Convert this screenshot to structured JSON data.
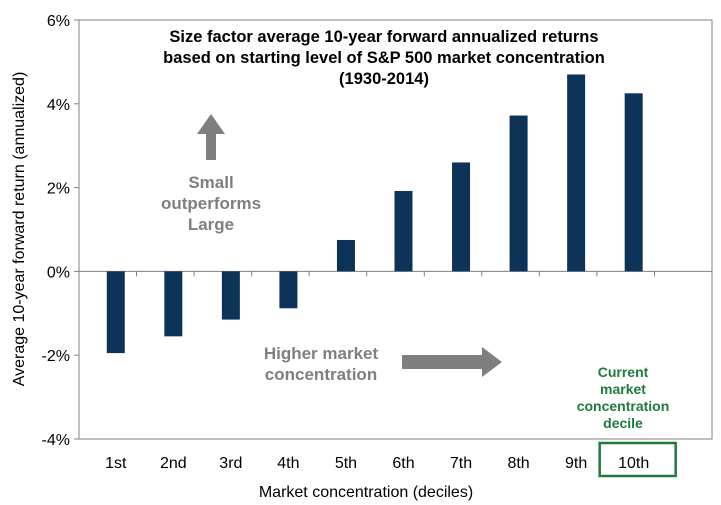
{
  "chart_data": {
    "type": "bar",
    "title_lines": [
      "Size factor average 10-year forward annualized returns",
      "based on starting level of S&P 500 market concentration",
      "(1930-2014)"
    ],
    "xlabel": "Market concentration (deciles)",
    "ylabel": "Average 10-year forward return (annualized)",
    "categories": [
      "1st",
      "2nd",
      "3rd",
      "4th",
      "5th",
      "6th",
      "7th",
      "8th",
      "9th",
      "10th"
    ],
    "values": [
      -1.95,
      -1.55,
      -1.15,
      -0.88,
      0.75,
      1.92,
      2.6,
      3.72,
      4.7,
      4.25
    ],
    "ylim": [
      -4,
      6
    ],
    "yticks": [
      6,
      4,
      2,
      0,
      -2,
      -4
    ],
    "ytick_labels": [
      "6%",
      "4%",
      "2%",
      "0%",
      "-2%",
      "-4%"
    ],
    "bar_color": "#0d3358",
    "annotations": {
      "upper_lines": [
        "Small",
        "outperforms",
        "Large"
      ],
      "lower_lines": [
        "Higher market",
        "concentration"
      ],
      "current_lines": [
        "Current",
        "market",
        "concentration",
        "decile"
      ],
      "arrow_color": "#7f7f7f",
      "highlight_color": "#1e7b3a",
      "highlight_category": "10th"
    }
  }
}
